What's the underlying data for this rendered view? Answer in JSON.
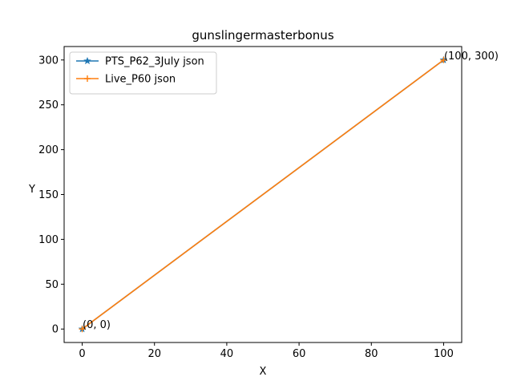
{
  "chart_data": {
    "type": "line",
    "title": "gunslingermasterbonus",
    "xlabel": "X",
    "ylabel": "Y",
    "xlim": [
      -5,
      105
    ],
    "ylim": [
      -15,
      315
    ],
    "xticks": [
      0,
      20,
      40,
      60,
      80,
      100
    ],
    "yticks": [
      0,
      50,
      100,
      150,
      200,
      250,
      300
    ],
    "grid": false,
    "legend_position": "upper-left",
    "series": [
      {
        "name": "PTS_P62_3July json",
        "color": "#1f77b4",
        "marker": "star",
        "x": [
          0,
          100
        ],
        "y": [
          0,
          300
        ]
      },
      {
        "name": "Live_P60 json",
        "color": "#ff7f0e",
        "marker": "plus",
        "x": [
          0,
          100
        ],
        "y": [
          0,
          300
        ]
      }
    ],
    "annotations": [
      {
        "text": "(0, 0)",
        "x": 0,
        "y": 0
      },
      {
        "text": "(100, 300)",
        "x": 100,
        "y": 300
      }
    ]
  }
}
